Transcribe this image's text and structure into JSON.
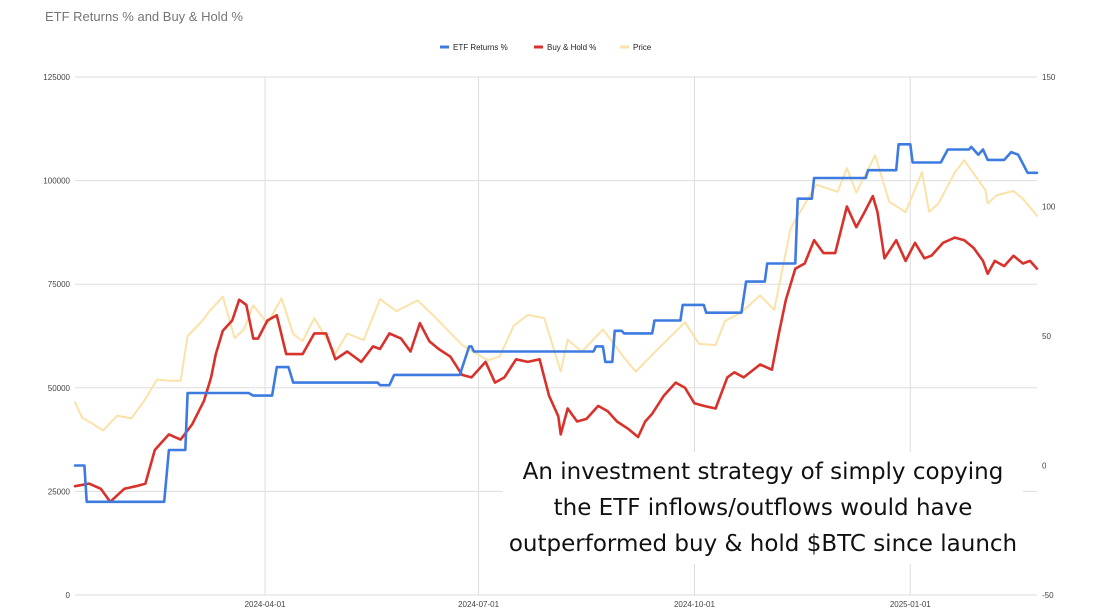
{
  "chart_data": {
    "type": "line",
    "title": "ETF Returns % and Buy & Hold %",
    "legend_position": "top-center",
    "grid": true,
    "x_type": "date",
    "xlim": [
      "2024-01-11",
      "2025-02-24"
    ],
    "x_ticks": [
      "2024-04-01",
      "2024-07-01",
      "2024-10-01",
      "2025-01-01"
    ],
    "y_left": {
      "lim": [
        0,
        125000
      ],
      "ticks": [
        "0",
        "25000",
        "50000",
        "75000",
        "100000",
        "125000"
      ]
    },
    "y_right": {
      "lim": [
        -50,
        150
      ],
      "ticks": [
        "-50",
        "0",
        "50",
        "100",
        "150"
      ]
    },
    "series": [
      {
        "name": "ETF Returns %",
        "axis": "right",
        "color": "#3d7be0",
        "step": true,
        "points": [
          [
            "2024-01-11",
            0
          ],
          [
            "2024-01-15",
            0
          ],
          [
            "2024-01-16",
            -14
          ],
          [
            "2024-02-18",
            -14
          ],
          [
            "2024-02-20",
            6
          ],
          [
            "2024-02-27",
            6
          ],
          [
            "2024-02-28",
            28
          ],
          [
            "2024-03-25",
            28
          ],
          [
            "2024-03-27",
            27
          ],
          [
            "2024-04-04",
            27
          ],
          [
            "2024-04-06",
            38
          ],
          [
            "2024-04-11",
            38
          ],
          [
            "2024-04-13",
            32
          ],
          [
            "2024-05-19",
            32
          ],
          [
            "2024-05-20",
            31
          ],
          [
            "2024-05-24",
            31
          ],
          [
            "2024-05-26",
            35
          ],
          [
            "2024-06-23",
            35
          ],
          [
            "2024-06-27",
            46
          ],
          [
            "2024-06-28",
            46
          ],
          [
            "2024-06-29",
            44
          ],
          [
            "2024-08-19",
            44
          ],
          [
            "2024-08-20",
            46
          ],
          [
            "2024-08-23",
            46
          ],
          [
            "2024-08-24",
            40
          ],
          [
            "2024-08-27",
            40
          ],
          [
            "2024-08-28",
            52
          ],
          [
            "2024-08-31",
            52
          ],
          [
            "2024-09-01",
            51
          ],
          [
            "2024-09-13",
            51
          ],
          [
            "2024-09-14",
            56
          ],
          [
            "2024-09-25",
            56
          ],
          [
            "2024-09-26",
            62
          ],
          [
            "2024-10-05",
            62
          ],
          [
            "2024-10-06",
            59
          ],
          [
            "2024-10-21",
            59
          ],
          [
            "2024-10-23",
            71
          ],
          [
            "2024-10-31",
            71
          ],
          [
            "2024-11-01",
            78
          ],
          [
            "2024-11-13",
            78
          ],
          [
            "2024-11-14",
            103
          ],
          [
            "2024-11-20",
            103
          ],
          [
            "2024-11-21",
            111
          ],
          [
            "2024-12-13",
            111
          ],
          [
            "2024-12-14",
            114
          ],
          [
            "2024-12-26",
            114
          ],
          [
            "2024-12-27",
            124
          ],
          [
            "2025-01-01",
            124
          ],
          [
            "2025-01-02",
            117
          ],
          [
            "2025-01-14",
            117
          ],
          [
            "2025-01-17",
            122
          ],
          [
            "2025-01-26",
            122
          ],
          [
            "2025-01-27",
            123
          ],
          [
            "2025-01-30",
            120
          ],
          [
            "2025-02-01",
            122
          ],
          [
            "2025-02-03",
            118
          ],
          [
            "2025-02-10",
            118
          ],
          [
            "2025-02-13",
            121
          ],
          [
            "2025-02-16",
            120
          ],
          [
            "2025-02-20",
            113
          ],
          [
            "2025-02-24",
            113
          ]
        ]
      },
      {
        "name": "Buy & Hold %",
        "axis": "right",
        "color": "#d7322b",
        "step": false,
        "points": [
          [
            "2024-01-11",
            -8
          ],
          [
            "2024-01-17",
            -7
          ],
          [
            "2024-01-22",
            -9
          ],
          [
            "2024-01-26",
            -14
          ],
          [
            "2024-02-01",
            -9
          ],
          [
            "2024-02-06",
            -8
          ],
          [
            "2024-02-10",
            -7
          ],
          [
            "2024-02-14",
            6
          ],
          [
            "2024-02-16",
            8
          ],
          [
            "2024-02-20",
            12
          ],
          [
            "2024-02-25",
            10
          ],
          [
            "2024-03-01",
            16
          ],
          [
            "2024-03-06",
            25
          ],
          [
            "2024-03-09",
            34
          ],
          [
            "2024-03-11",
            43
          ],
          [
            "2024-03-14",
            52
          ],
          [
            "2024-03-18",
            56
          ],
          [
            "2024-03-21",
            64
          ],
          [
            "2024-03-24",
            62
          ],
          [
            "2024-03-27",
            49
          ],
          [
            "2024-03-29",
            49
          ],
          [
            "2024-04-02",
            56
          ],
          [
            "2024-04-06",
            58
          ],
          [
            "2024-04-10",
            43
          ],
          [
            "2024-04-13",
            43
          ],
          [
            "2024-04-17",
            43
          ],
          [
            "2024-04-22",
            51
          ],
          [
            "2024-04-27",
            51
          ],
          [
            "2024-05-01",
            41
          ],
          [
            "2024-05-06",
            44
          ],
          [
            "2024-05-12",
            40
          ],
          [
            "2024-05-17",
            46
          ],
          [
            "2024-05-20",
            45
          ],
          [
            "2024-05-24",
            51
          ],
          [
            "2024-05-29",
            49
          ],
          [
            "2024-06-02",
            44
          ],
          [
            "2024-06-06",
            55
          ],
          [
            "2024-06-10",
            48
          ],
          [
            "2024-06-14",
            45
          ],
          [
            "2024-06-19",
            42
          ],
          [
            "2024-06-24",
            35
          ],
          [
            "2024-06-28",
            34
          ],
          [
            "2024-07-04",
            40
          ],
          [
            "2024-07-08",
            32
          ],
          [
            "2024-07-12",
            34
          ],
          [
            "2024-07-17",
            41
          ],
          [
            "2024-07-22",
            40
          ],
          [
            "2024-07-27",
            41
          ],
          [
            "2024-07-31",
            27
          ],
          [
            "2024-08-04",
            19
          ],
          [
            "2024-08-05",
            12
          ],
          [
            "2024-08-08",
            22
          ],
          [
            "2024-08-12",
            17
          ],
          [
            "2024-08-16",
            18
          ],
          [
            "2024-08-21",
            23
          ],
          [
            "2024-08-25",
            21
          ],
          [
            "2024-08-29",
            17
          ],
          [
            "2024-09-03",
            14
          ],
          [
            "2024-09-07",
            11
          ],
          [
            "2024-09-10",
            17
          ],
          [
            "2024-09-13",
            20
          ],
          [
            "2024-09-18",
            27
          ],
          [
            "2024-09-23",
            32
          ],
          [
            "2024-09-27",
            30
          ],
          [
            "2024-10-01",
            24
          ],
          [
            "2024-10-05",
            23
          ],
          [
            "2024-10-10",
            22
          ],
          [
            "2024-10-15",
            34
          ],
          [
            "2024-10-18",
            36
          ],
          [
            "2024-10-22",
            34
          ],
          [
            "2024-10-29",
            39
          ],
          [
            "2024-11-03",
            37
          ],
          [
            "2024-11-06",
            51
          ],
          [
            "2024-11-09",
            64
          ],
          [
            "2024-11-13",
            76
          ],
          [
            "2024-11-17",
            78
          ],
          [
            "2024-11-21",
            87
          ],
          [
            "2024-11-25",
            82
          ],
          [
            "2024-11-30",
            82
          ],
          [
            "2024-12-05",
            100
          ],
          [
            "2024-12-09",
            92
          ],
          [
            "2024-12-12",
            97
          ],
          [
            "2024-12-16",
            104
          ],
          [
            "2024-12-18",
            98
          ],
          [
            "2024-12-21",
            80
          ],
          [
            "2024-12-26",
            87
          ],
          [
            "2024-12-30",
            79
          ],
          [
            "2025-01-03",
            86
          ],
          [
            "2025-01-07",
            80
          ],
          [
            "2025-01-10",
            81
          ],
          [
            "2025-01-15",
            86
          ],
          [
            "2025-01-20",
            88
          ],
          [
            "2025-01-24",
            87
          ],
          [
            "2025-01-28",
            84
          ],
          [
            "2025-02-01",
            79
          ],
          [
            "2025-02-03",
            74
          ],
          [
            "2025-02-06",
            79
          ],
          [
            "2025-02-10",
            77
          ],
          [
            "2025-02-14",
            81
          ],
          [
            "2025-02-18",
            78
          ],
          [
            "2025-02-21",
            79
          ],
          [
            "2025-02-24",
            76
          ]
        ]
      },
      {
        "name": "Price",
        "axis": "left",
        "color": "#fbe2a8",
        "step": false,
        "points": [
          [
            "2024-01-11",
            46500
          ],
          [
            "2024-01-14",
            42800
          ],
          [
            "2024-01-18",
            41500
          ],
          [
            "2024-01-23",
            39700
          ],
          [
            "2024-01-29",
            43300
          ],
          [
            "2024-02-04",
            42600
          ],
          [
            "2024-02-10",
            47300
          ],
          [
            "2024-02-15",
            52000
          ],
          [
            "2024-02-20",
            51700
          ],
          [
            "2024-02-25",
            51700
          ],
          [
            "2024-02-28",
            62500
          ],
          [
            "2024-03-05",
            66000
          ],
          [
            "2024-03-08",
            68300
          ],
          [
            "2024-03-14",
            72000
          ],
          [
            "2024-03-19",
            62000
          ],
          [
            "2024-03-23",
            64100
          ],
          [
            "2024-03-27",
            69900
          ],
          [
            "2024-04-02",
            65500
          ],
          [
            "2024-04-08",
            71600
          ],
          [
            "2024-04-13",
            63000
          ],
          [
            "2024-04-17",
            61300
          ],
          [
            "2024-04-22",
            66800
          ],
          [
            "2024-05-01",
            58300
          ],
          [
            "2024-05-06",
            63100
          ],
          [
            "2024-05-13",
            61500
          ],
          [
            "2024-05-20",
            71400
          ],
          [
            "2024-05-27",
            68500
          ],
          [
            "2024-06-05",
            71100
          ],
          [
            "2024-06-12",
            67300
          ],
          [
            "2024-06-24",
            60300
          ],
          [
            "2024-07-05",
            56600
          ],
          [
            "2024-07-10",
            57600
          ],
          [
            "2024-07-16",
            65000
          ],
          [
            "2024-07-22",
            67600
          ],
          [
            "2024-07-29",
            66800
          ],
          [
            "2024-08-05",
            53900
          ],
          [
            "2024-08-08",
            61600
          ],
          [
            "2024-08-14",
            58700
          ],
          [
            "2024-08-23",
            64100
          ],
          [
            "2024-09-01",
            57300
          ],
          [
            "2024-09-06",
            53900
          ],
          [
            "2024-09-15",
            59100
          ],
          [
            "2024-09-27",
            65800
          ],
          [
            "2024-10-03",
            60600
          ],
          [
            "2024-10-10",
            60300
          ],
          [
            "2024-10-14",
            66100
          ],
          [
            "2024-10-21",
            68200
          ],
          [
            "2024-10-29",
            72300
          ],
          [
            "2024-11-04",
            68800
          ],
          [
            "2024-11-11",
            88400
          ],
          [
            "2024-11-13",
            90500
          ],
          [
            "2024-11-22",
            99000
          ],
          [
            "2024-12-01",
            97300
          ],
          [
            "2024-12-05",
            103000
          ],
          [
            "2024-12-09",
            97100
          ],
          [
            "2024-12-17",
            106100
          ],
          [
            "2024-12-23",
            94900
          ],
          [
            "2024-12-30",
            92400
          ],
          [
            "2025-01-06",
            102000
          ],
          [
            "2025-01-09",
            92500
          ],
          [
            "2025-01-13",
            94500
          ],
          [
            "2025-01-20",
            102000
          ],
          [
            "2025-01-24",
            104900
          ],
          [
            "2025-02-02",
            97700
          ],
          [
            "2025-02-03",
            94500
          ],
          [
            "2025-02-07",
            96500
          ],
          [
            "2025-02-14",
            97500
          ],
          [
            "2025-02-18",
            95600
          ],
          [
            "2025-02-24",
            91500
          ]
        ]
      }
    ]
  },
  "annotation_lines": [
    "An investment strategy of simply copying",
    "the ETF inflows/outflows would have",
    "outperformed buy & hold $BTC since launch"
  ]
}
